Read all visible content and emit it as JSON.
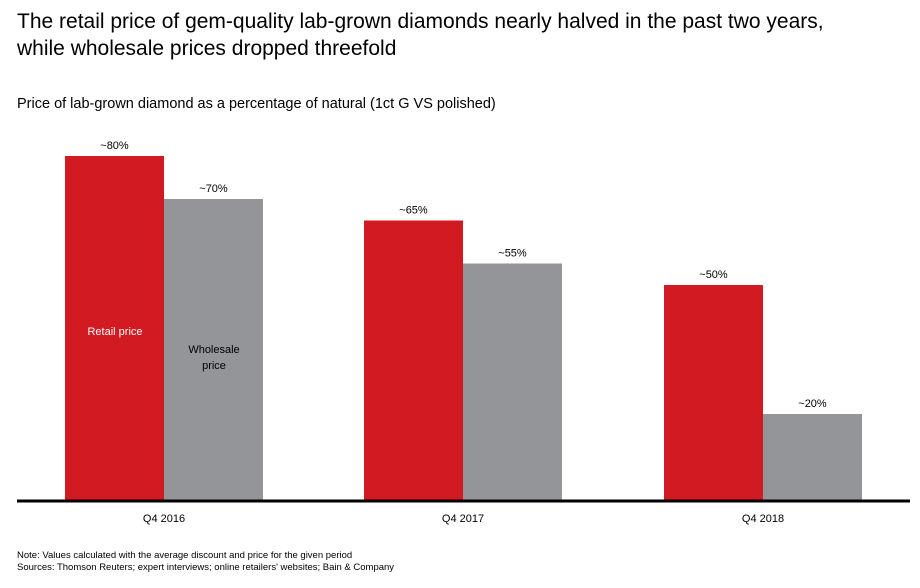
{
  "headline": "The retail price of gem-quality lab-grown diamonds nearly halved in the past two years, while wholesale prices dropped threefold",
  "footnotes": {
    "note": "Note: Values calculated with the average discount and price for the given period",
    "sources": "Sources: Thomson Reuters; expert interviews; online retailers' websites; Bain & Company"
  },
  "colors": {
    "retail": "#d11a21",
    "wholesale": "#939598",
    "baseline": "#000000"
  },
  "chart_data": {
    "type": "bar",
    "title": "Price of lab-grown diamond as a percentage of natural (1ct G VS polished)",
    "categories": [
      "Q4 2016",
      "Q4 2017",
      "Q4 2018"
    ],
    "series": [
      {
        "name": "Retail price",
        "values": [
          80,
          65,
          50
        ],
        "labels": [
          "~80%",
          "~65%",
          "~50%"
        ]
      },
      {
        "name": "Wholesale price",
        "values": [
          70,
          55,
          20
        ],
        "labels": [
          "~70%",
          "~55%",
          "~20%"
        ]
      }
    ],
    "ylim": [
      0,
      80
    ],
    "grid": false,
    "legend": "inside-first-group-bars"
  }
}
